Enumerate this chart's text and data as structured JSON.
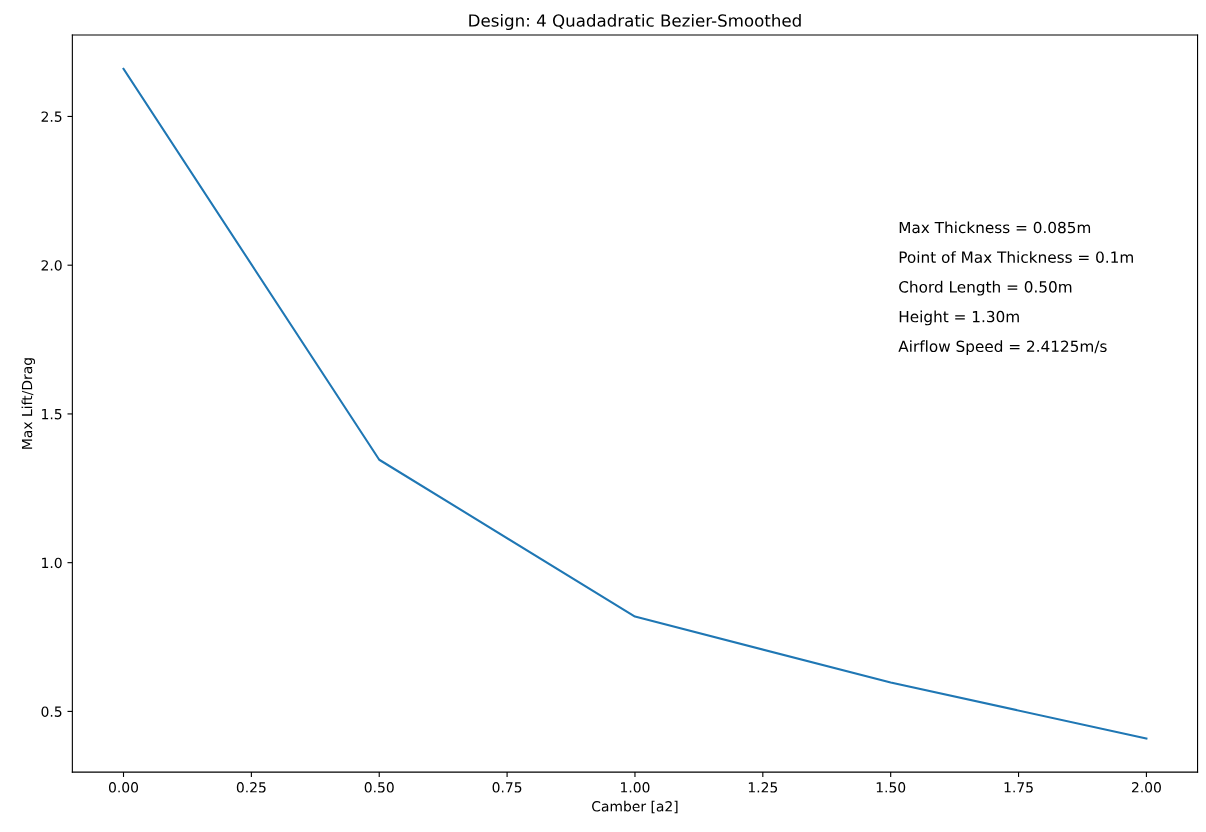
{
  "chart_data": {
    "type": "line",
    "title": "Design: 4 Quadadratic Bezier-Smoothed",
    "xlabel": "Camber [a2]",
    "ylabel": "Max Lift/Drag",
    "x": [
      0,
      0.5,
      1.0,
      1.5,
      2.0
    ],
    "series": [
      {
        "color": "#1f77b4",
        "values": [
          2.66,
          1.346,
          0.819,
          0.597,
          0.409
        ]
      }
    ],
    "xlim": [
      -0.1,
      2.1
    ],
    "xticks": [
      {
        "value": 0,
        "label": "0.00"
      },
      {
        "value": 0.25,
        "label": "0.25"
      },
      {
        "value": 0.5,
        "label": "0.50"
      },
      {
        "value": 0.75,
        "label": "0.75"
      },
      {
        "value": 1.0,
        "label": "1.00"
      },
      {
        "value": 1.25,
        "label": "1.25"
      },
      {
        "value": 1.5,
        "label": "1.50"
      },
      {
        "value": 1.75,
        "label": "1.75"
      },
      {
        "value": 2.0,
        "label": "2.00"
      }
    ],
    "ylim": [
      0.296,
      2.774
    ],
    "yticks": [
      {
        "value": 0.5,
        "label": "0.5"
      },
      {
        "value": 1.0,
        "label": "1.0"
      },
      {
        "value": 1.5,
        "label": "1.5"
      },
      {
        "value": 2.0,
        "label": "2.0"
      },
      {
        "value": 2.5,
        "label": "2.5"
      }
    ],
    "annotations": [
      "Max Thickness = 0.085m",
      "Point of Max Thickness = 0.1m",
      "Chord Length = 0.50m",
      "Height = 1.30m",
      "Airflow Speed = 2.4125m/s"
    ],
    "grid": false,
    "legend": false,
    "marker": "none",
    "line_style": "solid"
  }
}
